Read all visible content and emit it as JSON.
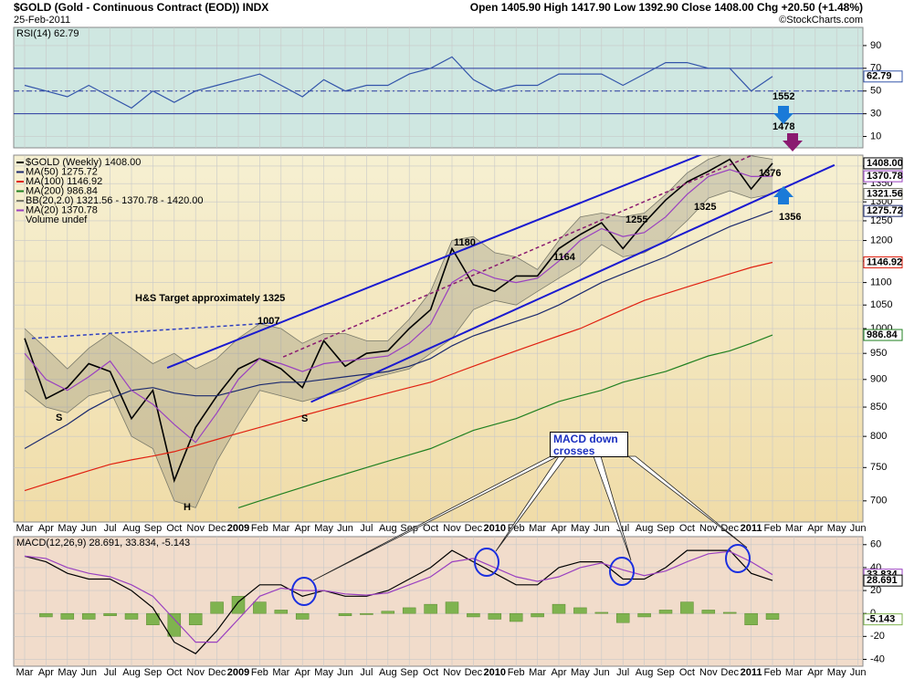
{
  "header": {
    "title": "$GOLD (Gold - Continuous Contract (EOD)) INDX",
    "date": "25-Feb-2011",
    "quote": "Open 1405.90  High 1417.90  Low 1392.90  Close 1408.00  Chg +20.50 (+1.48%)",
    "credit": "©StockCharts.com"
  },
  "chart_data": [
    {
      "type": "line",
      "label": "RSI(14) 62.79",
      "ylim": [
        0,
        106
      ],
      "yticks": [
        90,
        70,
        50,
        30,
        10
      ],
      "ref_lines": [
        {
          "value": 70,
          "style": "solid"
        },
        {
          "value": 50,
          "style": "dashdot"
        },
        {
          "value": 30,
          "style": "solid"
        }
      ],
      "series": [
        {
          "type": "line",
          "color": "#3355aa",
          "values": [
            55,
            50,
            45,
            55,
            45,
            35,
            50,
            40,
            50,
            55,
            60,
            65,
            55,
            45,
            60,
            50,
            55,
            55,
            65,
            70,
            80,
            60,
            50,
            55,
            55,
            65,
            65,
            65,
            55,
            65,
            75,
            75,
            70,
            70,
            50,
            62.79,
            null,
            null,
            null,
            null
          ]
        }
      ],
      "value_tags": [
        {
          "value": 62.79,
          "label": "62.79",
          "color": "#3355aa"
        }
      ]
    },
    {
      "type": "line",
      "log_scale": true,
      "ylim": [
        670,
        1432
      ],
      "yticks": [
        700,
        750,
        800,
        850,
        900,
        950,
        1000,
        1050,
        1100,
        1150,
        1200,
        1250,
        1300,
        1350,
        1400
      ],
      "categories": [
        "Mar",
        "Apr",
        "May",
        "Jun",
        "Jul",
        "Aug",
        "Sep",
        "Oct",
        "Nov",
        "Dec",
        "2009",
        "Feb",
        "Mar",
        "Apr",
        "May",
        "Jun",
        "Jul",
        "Aug",
        "Sep",
        "Oct",
        "Nov",
        "Dec",
        "2010",
        "Feb",
        "Mar",
        "Apr",
        "May",
        "Jun",
        "Jul",
        "Aug",
        "Sep",
        "Oct",
        "Nov",
        "Dec",
        "2011",
        "Feb",
        "Mar",
        "Apr",
        "May",
        "Jun"
      ],
      "series": [
        {
          "name": "$GOLD (Weekly) 1408.00",
          "type": "line",
          "color": "#000000",
          "values": [
            980,
            865,
            885,
            930,
            915,
            830,
            880,
            730,
            815,
            870,
            920,
            940,
            920,
            885,
            975,
            925,
            950,
            955,
            1000,
            1040,
            1180,
            1095,
            1080,
            1115,
            1115,
            1180,
            1215,
            1245,
            1180,
            1245,
            1305,
            1355,
            1385,
            1420,
            1335,
            1408,
            null,
            null,
            null,
            null
          ]
        },
        {
          "name": "MA(50) 1275.72",
          "type": "line",
          "color": "#1c2a6e",
          "values": [
            780,
            800,
            820,
            845,
            865,
            880,
            885,
            875,
            870,
            870,
            880,
            890,
            895,
            895,
            900,
            905,
            910,
            915,
            925,
            940,
            965,
            985,
            1000,
            1015,
            1030,
            1050,
            1075,
            1100,
            1120,
            1140,
            1160,
            1185,
            1210,
            1235,
            1255,
            1275.72,
            null,
            null,
            null,
            null
          ]
        },
        {
          "name": "MA(100) 1146.92",
          "type": "line",
          "color": "#e02010",
          "values": [
            715,
            725,
            735,
            745,
            755,
            762,
            768,
            775,
            785,
            795,
            805,
            815,
            825,
            835,
            845,
            855,
            865,
            875,
            885,
            895,
            910,
            925,
            940,
            955,
            970,
            985,
            1000,
            1020,
            1040,
            1060,
            1075,
            1090,
            1105,
            1120,
            1135,
            1146.92,
            null,
            null,
            null,
            null
          ]
        },
        {
          "name": "MA(200) 986.84",
          "type": "line",
          "color": "#208020",
          "values": [
            null,
            null,
            null,
            null,
            null,
            null,
            null,
            null,
            null,
            null,
            690,
            700,
            710,
            720,
            730,
            740,
            750,
            760,
            770,
            780,
            795,
            810,
            820,
            830,
            845,
            860,
            870,
            880,
            895,
            905,
            915,
            930,
            945,
            955,
            970,
            986.84,
            null,
            null,
            null,
            null
          ]
        },
        {
          "name": "BB(20,2.0) 1321.56 - 1370.78 - 1420.00",
          "type": "band",
          "color": "#7a7a6a",
          "upper": [
            1000,
            960,
            920,
            960,
            990,
            960,
            930,
            950,
            920,
            940,
            980,
            1010,
            1000,
            970,
            990,
            990,
            975,
            975,
            1020,
            1080,
            1200,
            1210,
            1170,
            1160,
            1130,
            1200,
            1260,
            1270,
            1260,
            1270,
            1320,
            1380,
            1420,
            1440,
            1430,
            1420,
            null,
            null,
            null,
            null
          ],
          "lower": [
            880,
            850,
            840,
            870,
            880,
            800,
            780,
            700,
            690,
            760,
            820,
            880,
            870,
            860,
            870,
            880,
            900,
            910,
            920,
            950,
            980,
            1040,
            1060,
            1050,
            1080,
            1110,
            1140,
            1190,
            1160,
            1170,
            1200,
            1250,
            1310,
            1330,
            1310,
            1321.56,
            null,
            null,
            null,
            null
          ]
        },
        {
          "name": "MA(20) 1370.78",
          "type": "line",
          "color": "#9a40c0",
          "values": [
            950,
            900,
            880,
            905,
            935,
            880,
            855,
            820,
            790,
            840,
            900,
            940,
            930,
            915,
            930,
            935,
            940,
            945,
            970,
            1010,
            1100,
            1130,
            1110,
            1100,
            1110,
            1150,
            1200,
            1230,
            1210,
            1220,
            1260,
            1320,
            1370,
            1390,
            1370,
            1370.78,
            null,
            null,
            null,
            null
          ]
        }
      ],
      "volume_label": "Volume undef",
      "trendlines": [
        {
          "x": [
            6.67,
            36.45
          ],
          "y": [
            922,
            1560
          ],
          "color": "#1a1ad0",
          "style": "solid"
        },
        {
          "x": [
            13.4,
            37.9
          ],
          "y": [
            859,
            1403
          ],
          "color": "#1a1ad0",
          "style": "solid"
        },
        {
          "x": [
            12.1,
            36.0
          ],
          "y": [
            943,
            1486
          ],
          "color": "#8a1a70",
          "style": "dashed"
        },
        {
          "x": [
            0.34,
            11.7
          ],
          "y": [
            980,
            1012
          ],
          "color": "#3040c0",
          "style": "dashed"
        }
      ],
      "annotations": [
        "H&S Target approximately 1325",
        "1007",
        "1180",
        "1164",
        "1255",
        "1325",
        "1376",
        "1478",
        "1552",
        "1356",
        "S",
        "H",
        "S"
      ],
      "value_tags": [
        {
          "value": 1408,
          "label": "1408.00",
          "color": "#000000"
        },
        {
          "value": 1370.78,
          "label": "1370.78",
          "color": "#9a40c0"
        },
        {
          "value": 1321.56,
          "label": "1321.56",
          "color": "#7a7a6a"
        },
        {
          "value": 1275.72,
          "label": "1275.72",
          "color": "#1c2a6e"
        },
        {
          "value": 1146.92,
          "label": "1146.92",
          "color": "#e02010"
        },
        {
          "value": 986.84,
          "label": "986.84",
          "color": "#208020"
        }
      ]
    },
    {
      "type": "line",
      "label": "MACD(12,26,9) 28.691, 33.834, -5.143",
      "ylim": [
        -46,
        67
      ],
      "yticks": [
        60,
        40,
        20,
        0,
        -20,
        -40
      ],
      "categories": [
        "Mar",
        "Apr",
        "May",
        "Jun",
        "Jul",
        "Aug",
        "Sep",
        "Oct",
        "Nov",
        "Dec",
        "2009",
        "Feb",
        "Mar",
        "Apr",
        "May",
        "Jun",
        "Jul",
        "Aug",
        "Sep",
        "Oct",
        "Nov",
        "Dec",
        "2010",
        "Feb",
        "Mar",
        "Apr",
        "May",
        "Jun",
        "Jul",
        "Aug",
        "Sep",
        "Oct",
        "Nov",
        "Dec",
        "2011",
        "Feb",
        "Mar",
        "Apr",
        "May",
        "Jun"
      ],
      "series": [
        {
          "type": "bar",
          "color": "#7fb34f",
          "values": [
            0,
            -3,
            -5,
            -5,
            -2,
            -5,
            -10,
            -20,
            -10,
            10,
            15,
            10,
            3,
            -5,
            0,
            -2,
            -1,
            2,
            5,
            8,
            10,
            -3,
            -5,
            -7,
            -3,
            8,
            5,
            1,
            -8,
            -3,
            3,
            10,
            3,
            1,
            -10,
            -5.143,
            null,
            null,
            null,
            null
          ]
        },
        {
          "type": "line",
          "color": "#000000",
          "values": [
            50,
            45,
            35,
            30,
            30,
            20,
            5,
            -25,
            -35,
            -15,
            10,
            25,
            25,
            15,
            20,
            15,
            15,
            20,
            30,
            40,
            55,
            45,
            35,
            25,
            25,
            40,
            45,
            45,
            30,
            30,
            40,
            55,
            55,
            55,
            35,
            28.691,
            null,
            null,
            null,
            null
          ]
        },
        {
          "type": "line",
          "color": "#9a40c0",
          "values": [
            50,
            48,
            40,
            35,
            32,
            25,
            15,
            -5,
            -25,
            -25,
            -5,
            15,
            22,
            20,
            20,
            17,
            16,
            18,
            25,
            32,
            45,
            48,
            40,
            32,
            28,
            32,
            40,
            44,
            38,
            33,
            37,
            45,
            52,
            54,
            45,
            33.834,
            null,
            null,
            null,
            null
          ]
        }
      ],
      "callout": "MACD down crosses",
      "value_tags": [
        {
          "value": 33.834,
          "label": "33.834",
          "color": "#9a40c0"
        },
        {
          "value": 28.691,
          "label": "28.691",
          "color": "#000000"
        },
        {
          "value": -5.143,
          "label": "-5.143",
          "color": "#7fb34f"
        }
      ]
    }
  ]
}
